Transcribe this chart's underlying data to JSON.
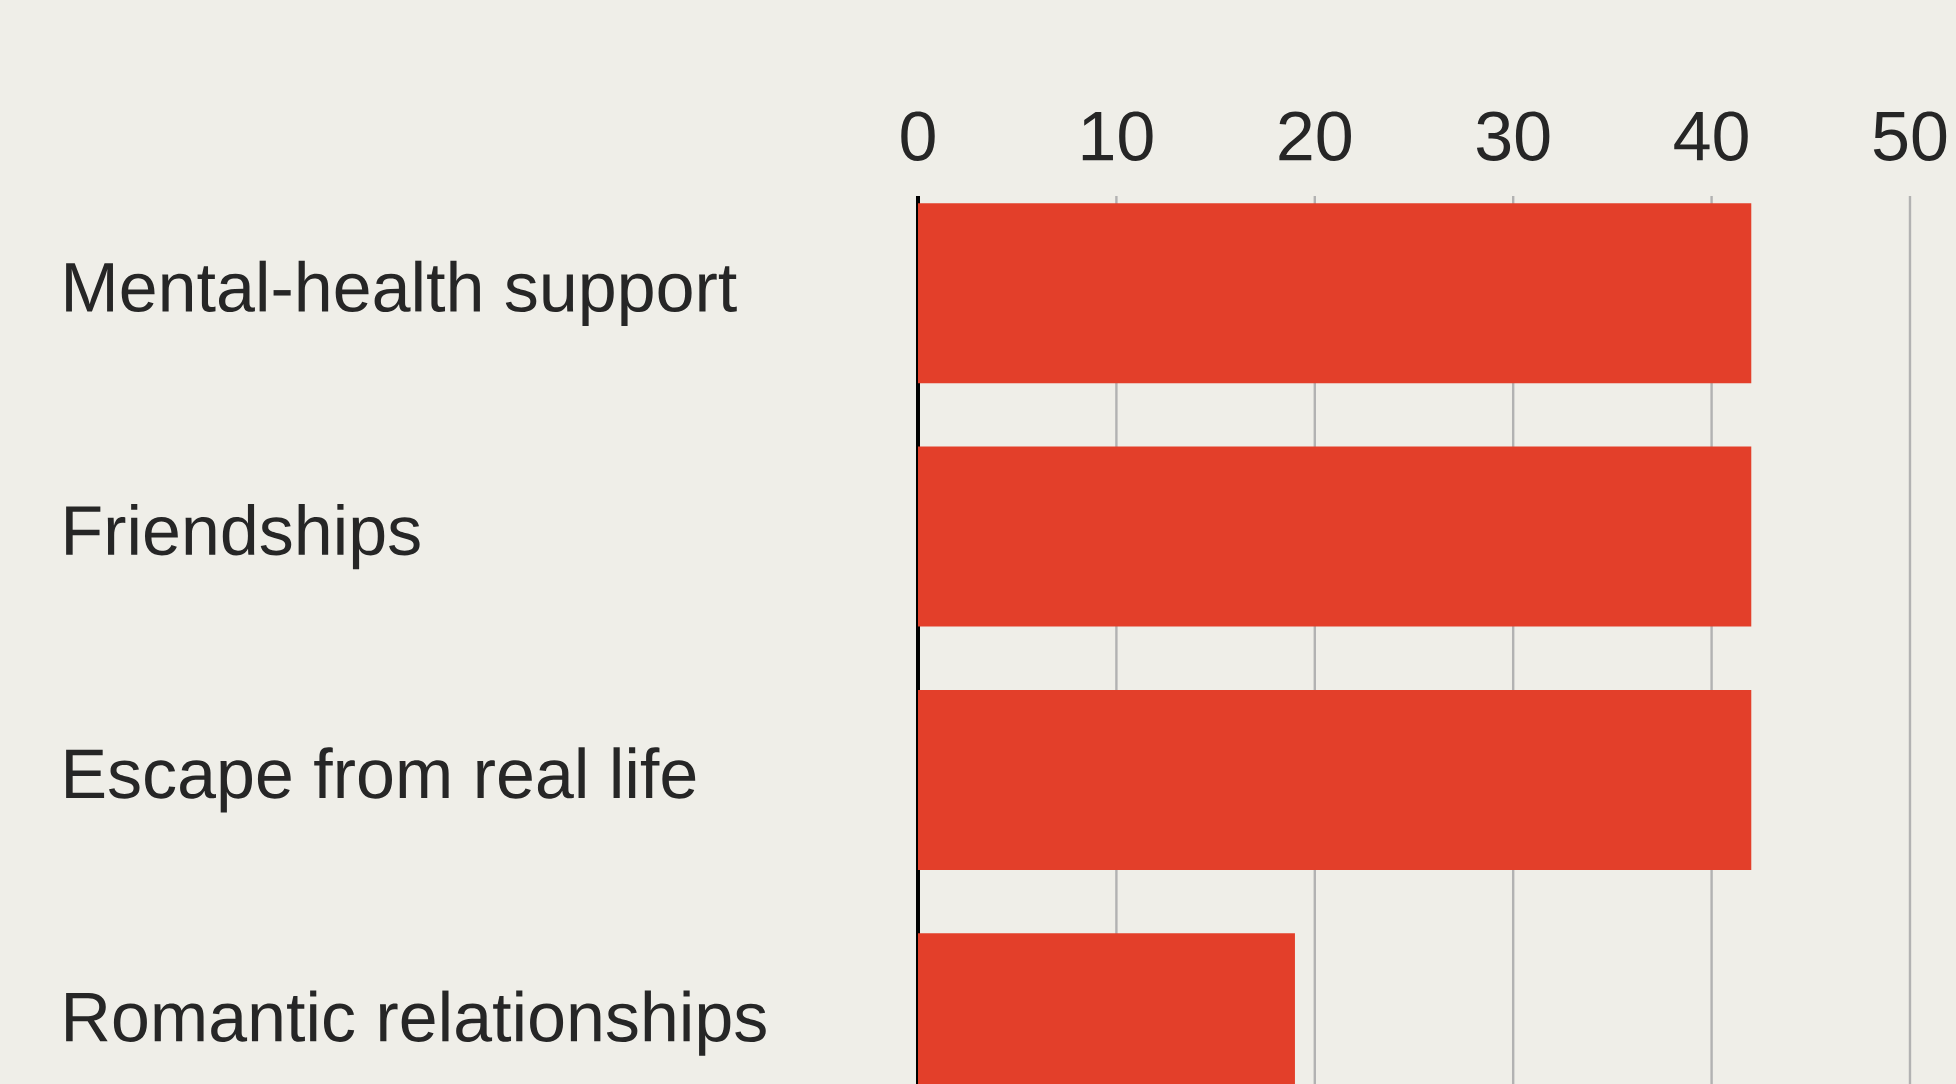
{
  "chart_data": {
    "type": "bar",
    "orientation": "horizontal",
    "categories": [
      "Mental-health support",
      "Friendships",
      "Escape from real life",
      "Romantic relationships"
    ],
    "values": [
      42,
      42,
      42,
      19
    ],
    "color": "#e33f2a",
    "xlim": [
      0,
      50
    ],
    "xticks": [
      0,
      10,
      20,
      30,
      40,
      50
    ],
    "grid": "x"
  }
}
